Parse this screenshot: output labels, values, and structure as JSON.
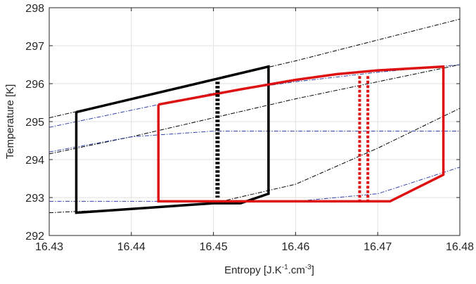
{
  "chart_data": {
    "type": "line",
    "title": "",
    "xlabel": "Entropy [J.K-1.cm-3]",
    "xlabel_parts": {
      "main": "Entropy [J.K",
      "sup1": "-1",
      "mid": ".cm",
      "sup2": "-3",
      "end": "]"
    },
    "ylabel": "Temperature [K]",
    "xlim": [
      16.43,
      16.48
    ],
    "ylim": [
      292,
      298
    ],
    "xticks": [
      16.43,
      16.44,
      16.45,
      16.46,
      16.47,
      16.48
    ],
    "xtick_labels": [
      "16.43",
      "16.44",
      "16.45",
      "16.46",
      "16.47",
      "16.48"
    ],
    "yticks": [
      292,
      293,
      294,
      295,
      296,
      297,
      298
    ],
    "ytick_labels": [
      "292",
      "293",
      "294",
      "295",
      "296",
      "297",
      "298"
    ],
    "grid": true,
    "colors": {
      "black": "#000000",
      "red": "#dd1111",
      "blue": "#3344aa",
      "grid": "#e2e2e2",
      "axis": "#262626"
    },
    "series": [
      {
        "style": "black-dashdot",
        "x": [
          16.43,
          16.44,
          16.45,
          16.46,
          16.47,
          16.48
        ],
        "y": [
          295.1,
          295.6,
          296.1,
          296.6,
          297.15,
          297.7
        ]
      },
      {
        "style": "black-dashdot",
        "x": [
          16.43,
          16.44,
          16.45,
          16.46,
          16.47,
          16.48
        ],
        "y": [
          294.15,
          294.6,
          295.1,
          295.6,
          296.05,
          296.5
        ]
      },
      {
        "style": "black-dashdot",
        "x": [
          16.43,
          16.44,
          16.45,
          16.46,
          16.47,
          16.48
        ],
        "y": [
          292.6,
          292.7,
          292.85,
          293.35,
          294.3,
          295.35
        ]
      },
      {
        "style": "blue-dashdot",
        "x": [
          16.43,
          16.44,
          16.45,
          16.46,
          16.47,
          16.48
        ],
        "y": [
          294.85,
          295.3,
          295.75,
          296.05,
          296.3,
          296.5
        ]
      },
      {
        "style": "blue-dashdot",
        "x": [
          16.43,
          16.44,
          16.45,
          16.46,
          16.47,
          16.48
        ],
        "y": [
          294.2,
          294.6,
          294.75,
          294.75,
          294.75,
          294.75
        ]
      },
      {
        "style": "blue-dashdot",
        "x": [
          16.43,
          16.44,
          16.45,
          16.4571,
          16.46,
          16.47,
          16.48
        ],
        "y": [
          292.9,
          292.9,
          292.9,
          292.9,
          292.9,
          293.1,
          293.8
        ]
      },
      {
        "style": "black-solid",
        "x": [
          16.4333,
          16.4567,
          16.4567,
          16.4533,
          16.45,
          16.4333,
          16.4333
        ],
        "y": [
          295.25,
          296.45,
          293.1,
          292.85,
          292.85,
          292.6,
          295.25
        ]
      },
      {
        "style": "red-solid",
        "x": [
          16.4433,
          16.4533,
          16.46,
          16.465,
          16.47,
          16.478,
          16.478,
          16.4715,
          16.4433,
          16.4433
        ],
        "y": [
          295.45,
          295.85,
          296.1,
          296.25,
          296.35,
          296.45,
          293.6,
          292.9,
          292.9,
          295.45
        ]
      },
      {
        "style": "black-dotted-thick",
        "x": [
          16.4505,
          16.4505
        ],
        "y": [
          296.05,
          293.0
        ]
      },
      {
        "style": "red-dotted",
        "x": [
          16.4678,
          16.4678
        ],
        "y": [
          296.2,
          292.9
        ]
      },
      {
        "style": "red-dotted",
        "x": [
          16.4688,
          16.4688
        ],
        "y": [
          296.2,
          292.9
        ]
      }
    ]
  }
}
